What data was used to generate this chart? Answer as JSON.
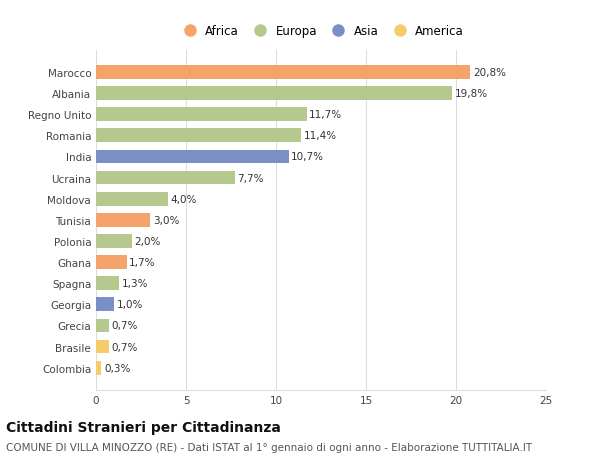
{
  "countries": [
    "Marocco",
    "Albania",
    "Regno Unito",
    "Romania",
    "India",
    "Ucraina",
    "Moldova",
    "Tunisia",
    "Polonia",
    "Ghana",
    "Spagna",
    "Georgia",
    "Grecia",
    "Brasile",
    "Colombia"
  ],
  "values": [
    20.8,
    19.8,
    11.7,
    11.4,
    10.7,
    7.7,
    4.0,
    3.0,
    2.0,
    1.7,
    1.3,
    1.0,
    0.7,
    0.7,
    0.3
  ],
  "labels": [
    "20,8%",
    "19,8%",
    "11,7%",
    "11,4%",
    "10,7%",
    "7,7%",
    "4,0%",
    "3,0%",
    "2,0%",
    "1,7%",
    "1,3%",
    "1,0%",
    "0,7%",
    "0,7%",
    "0,3%"
  ],
  "continents": [
    "Africa",
    "Europa",
    "Europa",
    "Europa",
    "Asia",
    "Europa",
    "Europa",
    "Africa",
    "Europa",
    "Africa",
    "Europa",
    "Asia",
    "Europa",
    "America",
    "America"
  ],
  "colors": {
    "Africa": "#F4A46A",
    "Europa": "#B5C98E",
    "Asia": "#7B8FC7",
    "America": "#F5CC6A"
  },
  "legend_order": [
    "Africa",
    "Europa",
    "Asia",
    "America"
  ],
  "title": "Cittadini Stranieri per Cittadinanza",
  "subtitle": "COMUNE DI VILLA MINOZZO (RE) - Dati ISTAT al 1° gennaio di ogni anno - Elaborazione TUTTITALIA.IT",
  "xlim": [
    0,
    25
  ],
  "xticks": [
    0,
    5,
    10,
    15,
    20,
    25
  ],
  "background_color": "#ffffff",
  "grid_color": "#dddddd",
  "bar_height": 0.65,
  "title_fontsize": 10,
  "subtitle_fontsize": 7.5,
  "label_fontsize": 7.5,
  "tick_fontsize": 7.5,
  "legend_fontsize": 8.5
}
